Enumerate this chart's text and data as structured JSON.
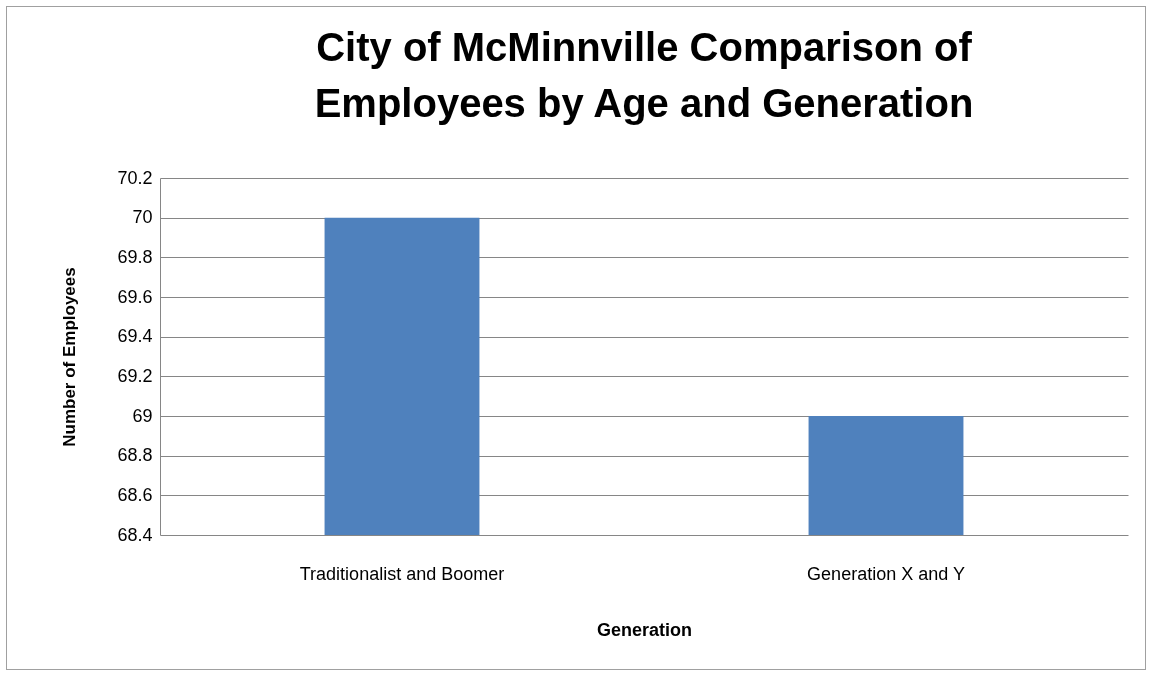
{
  "chart_data": {
    "type": "bar",
    "title": "City of McMinnville Comparison of Employees by Age and Generation",
    "xlabel": "Generation",
    "ylabel": "Number of Employees",
    "categories": [
      "Traditionalist and Boomer",
      "Generation X and Y"
    ],
    "values": [
      70,
      69
    ],
    "color": "#4f81bd",
    "ylim": [
      68.4,
      70.2
    ],
    "yticks": [
      68.4,
      68.6,
      68.8,
      69,
      69.2,
      69.4,
      69.6,
      69.8,
      70,
      70.2
    ],
    "grid": "y"
  }
}
